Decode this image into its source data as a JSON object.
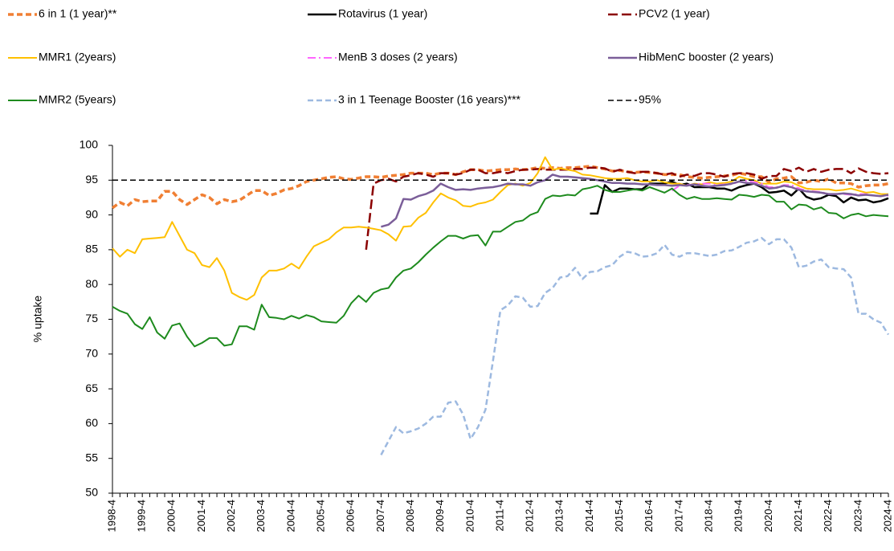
{
  "chart_data": {
    "type": "line",
    "ylabel": "% uptake",
    "categories": [
      "1998-4",
      null,
      null,
      null,
      "1999-4",
      null,
      null,
      null,
      "2000-4",
      null,
      null,
      null,
      "2001-4",
      null,
      null,
      null,
      "2002-4",
      null,
      null,
      null,
      "2003-4",
      null,
      null,
      null,
      "2004-4",
      null,
      null,
      null,
      "2005-4",
      null,
      null,
      null,
      "2006-4",
      null,
      null,
      null,
      "2007-4",
      null,
      null,
      null,
      "2008-4",
      null,
      null,
      null,
      "2009-4",
      null,
      null,
      null,
      "2010-4",
      null,
      null,
      null,
      "2011-4",
      null,
      null,
      null,
      "2012-4",
      null,
      null,
      null,
      "2013-4",
      null,
      null,
      null,
      "2014-4",
      null,
      null,
      null,
      "2015-4",
      null,
      null,
      null,
      "2016-4",
      null,
      null,
      null,
      "2017-4",
      null,
      null,
      null,
      "2018-4",
      null,
      null,
      null,
      "2019-4",
      null,
      null,
      null,
      "2020-4",
      null,
      null,
      null,
      "2021-4",
      null,
      null,
      null,
      "2022-4",
      null,
      null,
      null,
      "2023-4",
      null,
      null,
      null,
      "2024-4"
    ],
    "ylim": [
      50,
      100
    ],
    "yticks": [
      50,
      55,
      60,
      65,
      70,
      75,
      80,
      85,
      90,
      95,
      100
    ],
    "series": [
      {
        "name": "6 in 1 (1 year)**",
        "color": "#f07f33",
        "style": "dashed",
        "width": 3.5,
        "values": [
          91,
          91.8,
          91.3,
          92.2,
          91.9,
          92,
          92,
          93.4,
          93.4,
          92.2,
          91.5,
          92.2,
          92.9,
          92.5,
          91.6,
          92.2,
          91.9,
          92.1,
          92.8,
          93.5,
          93.5,
          92.8,
          93.1,
          93.6,
          93.8,
          94.2,
          94.8,
          95,
          95.2,
          95.4,
          95.5,
          95.2,
          95.1,
          95.3,
          95.5,
          95.5,
          95.4,
          95.6,
          95.7,
          95.8,
          96,
          96,
          96,
          95.8,
          96,
          96,
          95.8,
          96.2,
          96.5,
          96.5,
          96.3,
          96.4,
          96.5,
          96.5,
          96.6,
          96.5,
          96.6,
          96.8,
          96.7,
          96.8,
          96.7,
          96.8,
          96.8,
          96.9,
          97,
          96.8,
          96.6,
          96.3,
          96.4,
          96.2,
          96.1,
          96.2,
          96.1,
          96,
          95.8,
          95.8,
          95.8,
          95.5,
          95.4,
          95.3,
          95.4,
          95.5,
          95.6,
          95.7,
          96,
          95.8,
          95.5,
          95.5,
          94.7,
          95.2,
          95.3,
          95.5,
          94.6,
          94.7,
          95,
          94.8,
          95.2,
          94.6,
          94.6,
          94.5,
          94,
          94.2,
          94.3,
          94.3,
          94.5
        ]
      },
      {
        "name": "Rotavirus (1 year)",
        "color": "#000000",
        "style": "solid",
        "width": 2.5,
        "values": [
          null,
          null,
          null,
          null,
          null,
          null,
          null,
          null,
          null,
          null,
          null,
          null,
          null,
          null,
          null,
          null,
          null,
          null,
          null,
          null,
          null,
          null,
          null,
          null,
          null,
          null,
          null,
          null,
          null,
          null,
          null,
          null,
          null,
          null,
          null,
          null,
          null,
          null,
          null,
          null,
          null,
          null,
          null,
          null,
          null,
          null,
          null,
          null,
          null,
          null,
          null,
          null,
          null,
          null,
          null,
          null,
          null,
          null,
          null,
          null,
          null,
          null,
          null,
          null,
          90.2,
          90.2,
          94.3,
          93.3,
          93.8,
          93.8,
          93.7,
          93.7,
          94.5,
          94.5,
          94.5,
          94.8,
          94.3,
          94.5,
          94,
          94,
          94,
          93.8,
          93.8,
          93.5,
          94,
          94.3,
          94.5,
          94,
          93.2,
          93.3,
          93.5,
          92.8,
          93.8,
          92.6,
          92.2,
          92.4,
          92.9,
          92.7,
          91.8,
          92.5,
          92.1,
          92.2,
          91.8,
          92,
          92.4
        ]
      },
      {
        "name": "PCV2 (1 year)",
        "color": "#8b0000",
        "style": "long-dash",
        "width": 2.5,
        "values": [
          null,
          null,
          null,
          null,
          null,
          null,
          null,
          null,
          null,
          null,
          null,
          null,
          null,
          null,
          null,
          null,
          null,
          null,
          null,
          null,
          null,
          null,
          null,
          null,
          null,
          null,
          null,
          null,
          null,
          null,
          null,
          null,
          null,
          null,
          85,
          94.5,
          95,
          95.2,
          94.8,
          95.5,
          95.7,
          96,
          95.8,
          95.5,
          96,
          96,
          95.8,
          96,
          96.5,
          96.5,
          96,
          96,
          96.2,
          96,
          96.3,
          96.5,
          96.5,
          96.6,
          96.5,
          96.5,
          96.5,
          96.5,
          96.6,
          96.6,
          96.8,
          96.8,
          96.7,
          96.2,
          96.5,
          96.2,
          96,
          96.2,
          96.2,
          96,
          95.8,
          96,
          95.5,
          95.8,
          95.6,
          96,
          96,
          95.8,
          95.5,
          95.9,
          96,
          96,
          95.8,
          95.2,
          95.6,
          95.6,
          96.6,
          96.3,
          96.8,
          96.2,
          96.6,
          96.2,
          96.5,
          96.6,
          96.6,
          96,
          96.7,
          96.2,
          96,
          95.9,
          96
        ]
      },
      {
        "name": "MMR1 (2years)",
        "color": "#ffc000",
        "style": "solid",
        "width": 2,
        "values": [
          85.2,
          84,
          85,
          84.5,
          86.5,
          86.6,
          86.7,
          86.8,
          89,
          87,
          85,
          84.5,
          82.8,
          82.5,
          83.8,
          82,
          78.8,
          78.2,
          77.8,
          78.5,
          81,
          82,
          82,
          82.3,
          83,
          82.3,
          84,
          85.5,
          86,
          86.5,
          87.5,
          88.2,
          88.2,
          88.3,
          88.2,
          88,
          87.8,
          87.2,
          86.3,
          88.3,
          88.4,
          89.6,
          90.3,
          91.8,
          93.1,
          92.5,
          92.1,
          91.3,
          91.2,
          91.6,
          91.8,
          92.2,
          93.3,
          94.3,
          94.5,
          94.2,
          94.6,
          96,
          98.3,
          96.5,
          96.7,
          96.5,
          96.3,
          95.8,
          95.7,
          95.5,
          95.3,
          95.2,
          95.2,
          95.3,
          95,
          94.8,
          94.8,
          95,
          94.7,
          94.5,
          94.5,
          94.2,
          94.5,
          94.4,
          94.7,
          94.5,
          94.6,
          94.8,
          95.5,
          95.2,
          95,
          94.5,
          94.5,
          94.5,
          94.8,
          94.7,
          94.2,
          93.8,
          93.7,
          93.7,
          93.7,
          93.5,
          93.6,
          93.8,
          93.5,
          93.2,
          93.3,
          93,
          93
        ]
      },
      {
        "name": "MenB 3 doses (2 years)",
        "color": "#ff66ff",
        "style": "dash-dot",
        "width": 2,
        "values": [
          null,
          null,
          null,
          null,
          null,
          null,
          null,
          null,
          null,
          null,
          null,
          null,
          null,
          null,
          null,
          null,
          null,
          null,
          null,
          null,
          null,
          null,
          null,
          null,
          null,
          null,
          null,
          null,
          null,
          null,
          null,
          null,
          null,
          null,
          null,
          null,
          null,
          null,
          null,
          null,
          null,
          null,
          null,
          null,
          null,
          null,
          null,
          null,
          null,
          null,
          null,
          null,
          null,
          null,
          null,
          null,
          null,
          null,
          null,
          null,
          null,
          null,
          null,
          null,
          null,
          null,
          null,
          null,
          null,
          null,
          null,
          null,
          null,
          null,
          null,
          93.5,
          94.2,
          94.3,
          94.4,
          94.5,
          94.5,
          94.3,
          94.4,
          94.4,
          94.8,
          94.9,
          94.7,
          94.5,
          94,
          94,
          94.3,
          94.3,
          93.8,
          93.5,
          93.4,
          93.3,
          93,
          93,
          93,
          92.9,
          93,
          93,
          92.8,
          92.7,
          92.8
        ]
      },
      {
        "name": "HibMenC booster (2 years)",
        "color": "#7b5e99",
        "style": "solid",
        "width": 2.5,
        "values": [
          null,
          null,
          null,
          null,
          null,
          null,
          null,
          null,
          null,
          null,
          null,
          null,
          null,
          null,
          null,
          null,
          null,
          null,
          null,
          null,
          null,
          null,
          null,
          null,
          null,
          null,
          null,
          null,
          null,
          null,
          null,
          null,
          null,
          null,
          null,
          null,
          88.3,
          88.6,
          89.5,
          92.3,
          92.2,
          92.7,
          93,
          93.5,
          94.5,
          94,
          93.6,
          93.7,
          93.6,
          93.8,
          93.9,
          94,
          94.2,
          94.5,
          94.4,
          94.4,
          94.2,
          94.7,
          95,
          95.8,
          95.5,
          95.5,
          95.4,
          95.3,
          95.2,
          95,
          94.8,
          94.6,
          94.6,
          94.5,
          94.5,
          94.4,
          94.4,
          94.3,
          94.3,
          94.2,
          94.3,
          94.2,
          94.4,
          94.2,
          94.1,
          94.2,
          94.3,
          94.5,
          94.8,
          94.6,
          94.5,
          94.2,
          93.8,
          93.9,
          94.2,
          94,
          93.6,
          93.4,
          93.3,
          93.2,
          93,
          93,
          93.1,
          93,
          92.8,
          92.9,
          92.8,
          92.7,
          92.9
        ]
      },
      {
        "name": "MMR2 (5years)",
        "color": "#1e8b1e",
        "style": "solid",
        "width": 2,
        "values": [
          76.8,
          76.2,
          75.8,
          74.3,
          73.6,
          75.3,
          73.1,
          72.2,
          74.1,
          74.4,
          72.5,
          71.1,
          71.6,
          72.3,
          72.3,
          71.2,
          71.4,
          74,
          74,
          73.5,
          77.1,
          75.3,
          75.2,
          75,
          75.5,
          75.1,
          75.6,
          75.3,
          74.7,
          74.6,
          74.5,
          75.5,
          77.3,
          78.4,
          77.5,
          78.8,
          79.3,
          79.5,
          81,
          82,
          82.3,
          83.2,
          84.3,
          85.3,
          86.2,
          87,
          87,
          86.6,
          87,
          87.1,
          85.6,
          87.6,
          87.6,
          88.3,
          89,
          89.2,
          90,
          90.4,
          92.3,
          92.8,
          92.7,
          92.9,
          92.8,
          93.7,
          93.9,
          94.2,
          93.6,
          93.3,
          93.3,
          93.5,
          93.7,
          93.5,
          94,
          93.6,
          93.2,
          93.8,
          92.9,
          92.3,
          92.6,
          92.3,
          92.3,
          92.4,
          92.3,
          92.2,
          92.9,
          92.8,
          92.6,
          92.9,
          92.8,
          91.9,
          91.9,
          90.8,
          91.5,
          91.4,
          90.8,
          91.1,
          90.3,
          90.2,
          89.5,
          90,
          90.2,
          89.8,
          90,
          89.9,
          89.8
        ]
      },
      {
        "name": "3 in 1 Teenage Booster (16 years)***",
        "color": "#9db9e0",
        "style": "dashed",
        "width": 2.5,
        "values": [
          null,
          null,
          null,
          null,
          null,
          null,
          null,
          null,
          null,
          null,
          null,
          null,
          null,
          null,
          null,
          null,
          null,
          null,
          null,
          null,
          null,
          null,
          null,
          null,
          null,
          null,
          null,
          null,
          null,
          null,
          null,
          null,
          null,
          null,
          null,
          null,
          55.5,
          57.5,
          59.5,
          58.6,
          58.9,
          59.3,
          60,
          61,
          61,
          63,
          63.2,
          61.3,
          57.8,
          59.5,
          62,
          69,
          76.3,
          77,
          78.3,
          78.1,
          76.8,
          76.9,
          78.8,
          79.5,
          81,
          81.2,
          82.4,
          80.8,
          81.8,
          81.9,
          82.5,
          82.8,
          84,
          84.7,
          84.5,
          84,
          84.1,
          84.5,
          85.7,
          84.3,
          84,
          84.5,
          84.5,
          84.3,
          84.1,
          84.3,
          84.8,
          84.9,
          85.4,
          86,
          86.2,
          86.7,
          85.8,
          86.5,
          86.5,
          85.3,
          82.5,
          82.7,
          83.3,
          83.6,
          82.5,
          82.3,
          82.2,
          81,
          75.8,
          75.8,
          75,
          74.5,
          72.8
        ]
      },
      {
        "name": "95%",
        "color": "#000000",
        "style": "dashed",
        "width": 1.5,
        "values": [
          95,
          95,
          95,
          95,
          95,
          95,
          95,
          95,
          95,
          95,
          95,
          95,
          95,
          95,
          95,
          95,
          95,
          95,
          95,
          95,
          95,
          95,
          95,
          95,
          95,
          95,
          95,
          95,
          95,
          95,
          95,
          95,
          95,
          95,
          95,
          95,
          95,
          95,
          95,
          95,
          95,
          95,
          95,
          95,
          95,
          95,
          95,
          95,
          95,
          95,
          95,
          95,
          95,
          95,
          95,
          95,
          95,
          95,
          95,
          95,
          95,
          95,
          95,
          95,
          95,
          95,
          95,
          95,
          95,
          95,
          95,
          95,
          95,
          95,
          95,
          95,
          95,
          95,
          95,
          95,
          95,
          95,
          95,
          95,
          95,
          95,
          95,
          95,
          95,
          95,
          95,
          95,
          95,
          95,
          95,
          95,
          95,
          95,
          95,
          95,
          95,
          95,
          95,
          95,
          95
        ]
      }
    ]
  }
}
